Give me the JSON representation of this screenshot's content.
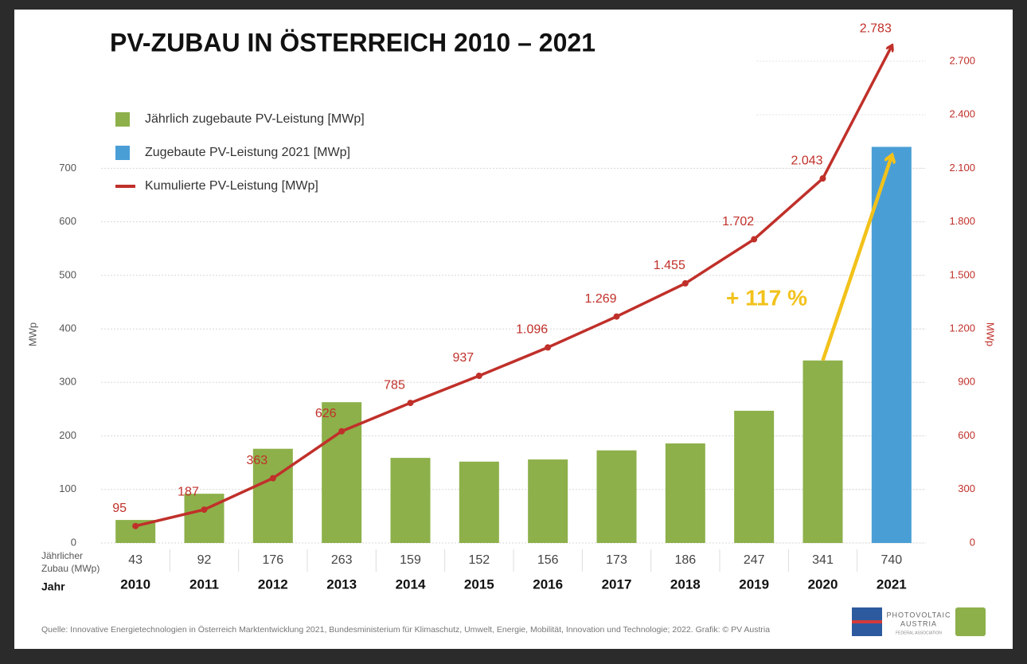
{
  "chart_data": {
    "type": "bar_line",
    "title": "PV-ZUBAU IN ÖSTERREICH 2010 – 2021",
    "categories": [
      "2010",
      "2011",
      "2012",
      "2013",
      "2014",
      "2015",
      "2016",
      "2017",
      "2018",
      "2019",
      "2020",
      "2021"
    ],
    "series": [
      {
        "name": "Jährlich zugebaute PV-Leistung [MWp]",
        "color": "#8db04a",
        "type": "bar",
        "values": [
          43,
          92,
          176,
          263,
          159,
          152,
          156,
          173,
          186,
          247,
          341,
          null
        ]
      },
      {
        "name": "Zugebaute PV-Leistung 2021 [MWp]",
        "color": "#4a9ed6",
        "type": "bar",
        "values": [
          null,
          null,
          null,
          null,
          null,
          null,
          null,
          null,
          null,
          null,
          null,
          740
        ]
      },
      {
        "name": "Kumulierte PV-Leistung [MWp]",
        "color": "#c0302a",
        "type": "line",
        "axis": "y2",
        "values": [
          95,
          187,
          363,
          626,
          785,
          937,
          1096,
          1269,
          1455,
          1702,
          2043,
          2783
        ],
        "value_labels": [
          "95",
          "187",
          "363",
          "626",
          "785",
          "937",
          "1.096",
          "1.269",
          "1.455",
          "1.702",
          "2.043",
          "2.783"
        ]
      }
    ],
    "ylabel": "MWp",
    "y2label": "MWp",
    "ylim": [
      0,
      940
    ],
    "yticks": [
      0,
      100,
      200,
      300,
      400,
      500,
      600,
      700
    ],
    "y2lim": [
      0,
      2820
    ],
    "y2ticks": [
      0,
      300,
      600,
      900,
      {
        "value": 1200,
        "label": "1.200"
      },
      {
        "value": 1500,
        "label": "1.500"
      },
      {
        "value": 1800,
        "label": "1.800"
      },
      {
        "value": 2100,
        "label": "2.100"
      },
      {
        "value": 2400,
        "label": "2.400"
      },
      {
        "value": 2700,
        "label": "2.700"
      }
    ],
    "grid": true,
    "legend": "upper left",
    "table_row_label": [
      "Jährlicher",
      "Zubau (MWp)"
    ],
    "table_year_label": "Jahr",
    "annotation": {
      "text": "+ 117 %",
      "color": "#f2c21b"
    },
    "source": "Quelle: Innovative Energietechnologien in Österreich Marktentwicklung 2021, Bundesministerium für Klimaschutz, Umwelt, Energie, Mobilität, Innovation und Technologie; 2022. Grafik: © PV Austria",
    "logo": [
      "PHOTOVOLTAIC",
      "AUSTRIA",
      "FEDERAL ASSOCIATION"
    ]
  }
}
